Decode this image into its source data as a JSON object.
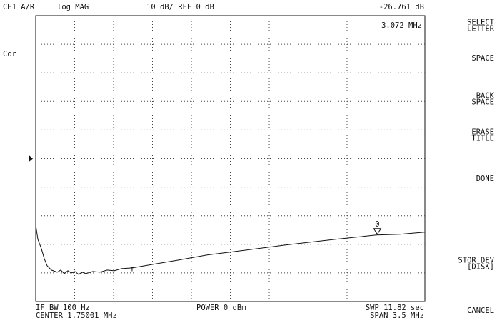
{
  "header": {
    "channel": "CH1 A/R",
    "format": "log MAG",
    "scale": "10 dB/ REF 0 dB"
  },
  "status": "Cor",
  "footer": {
    "if_bw": "IF BW 100 Hz",
    "center": "CENTER 1.75001 MHz",
    "power": "POWER 0 dBm",
    "sweep": "SWP 11.82 sec",
    "span": "SPAN 3.5 MHz"
  },
  "softkeys": [
    [
      "SELECT",
      "LETTER"
    ],
    [
      "SPACE"
    ],
    [
      "BACK",
      "SPACE"
    ],
    [
      "ERASE",
      "TITLE"
    ],
    [
      "DONE"
    ],
    [
      "STOR DEV",
      "[DISK]"
    ],
    [
      "CANCEL"
    ]
  ],
  "chart_data": {
    "type": "line",
    "color": "#111111",
    "x": [
      1e-05,
      0.019,
      0.051,
      0.077,
      0.103,
      0.141,
      0.193,
      0.225,
      0.257,
      0.289,
      0.321,
      0.353,
      0.385,
      0.417,
      0.45,
      0.514,
      0.578,
      0.642,
      0.706,
      0.771,
      0.867,
      1.092,
      1.284,
      1.541,
      1.798,
      2.248,
      2.697,
      3.063,
      3.275,
      3.5
    ],
    "values": [
      -23.25,
      -28.25,
      -31.5,
      -35,
      -37.5,
      -39,
      -39.75,
      -39,
      -40.25,
      -39.25,
      -40,
      -39.5,
      -40.5,
      -39.75,
      -40.25,
      -39.5,
      -39.75,
      -39,
      -39.25,
      -38.5,
      -38.25,
      -36.75,
      -35.5,
      -33.75,
      -32.5,
      -30.25,
      -28.25,
      -26.75,
      -26.5,
      -25.75
    ],
    "xlim": [
      1e-05,
      3.50001
    ],
    "xticks": [
      0.35001,
      0.70001,
      1.05001,
      1.40001,
      1.75001,
      2.10001,
      2.45001,
      2.80001,
      3.15001
    ],
    "ylim": [
      -50,
      50
    ],
    "yticks": [
      -40,
      -30,
      -20,
      -10,
      0,
      10,
      20,
      30,
      40
    ],
    "grid": true,
    "ref": 0,
    "marker": {
      "label": "0",
      "x": 3.072,
      "x_label": "3.072 MHz",
      "value": -26.761,
      "value_label": "-26.761 dB"
    }
  }
}
